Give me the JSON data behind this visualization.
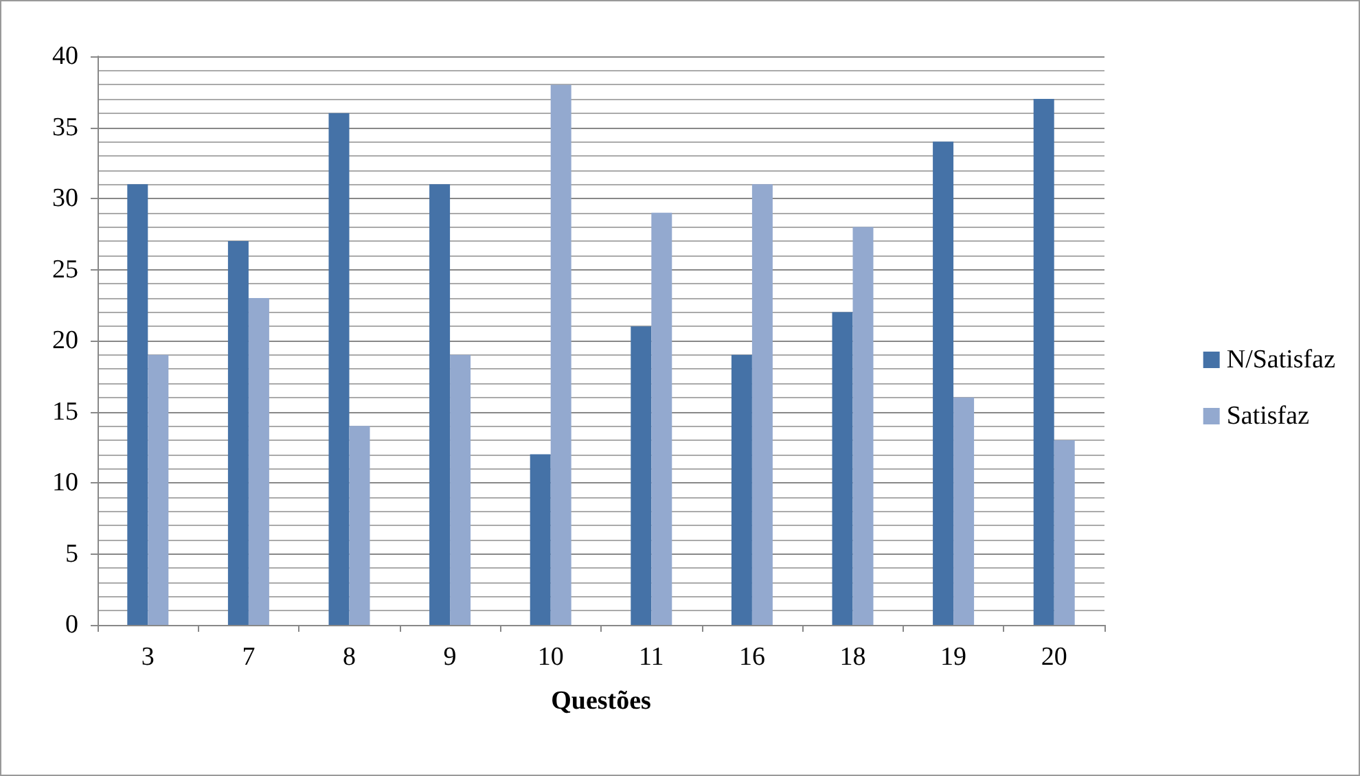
{
  "chart_data": {
    "type": "bar",
    "xlabel": "Questões",
    "categories": [
      "3",
      "7",
      "8",
      "9",
      "10",
      "11",
      "16",
      "18",
      "19",
      "20"
    ],
    "series": [
      {
        "name": "N/Satisfaz",
        "color": "#4572a7",
        "values": [
          31,
          27,
          36,
          31,
          12,
          21,
          19,
          22,
          34,
          37
        ]
      },
      {
        "name": "Satisfaz",
        "color": "#93a9cf",
        "values": [
          19,
          23,
          14,
          19,
          38,
          29,
          31,
          28,
          16,
          13
        ]
      }
    ],
    "ylim": [
      0,
      40
    ],
    "yticks": [
      0,
      5,
      10,
      15,
      20,
      25,
      30,
      35,
      40
    ],
    "grid": true,
    "legend": "right"
  }
}
